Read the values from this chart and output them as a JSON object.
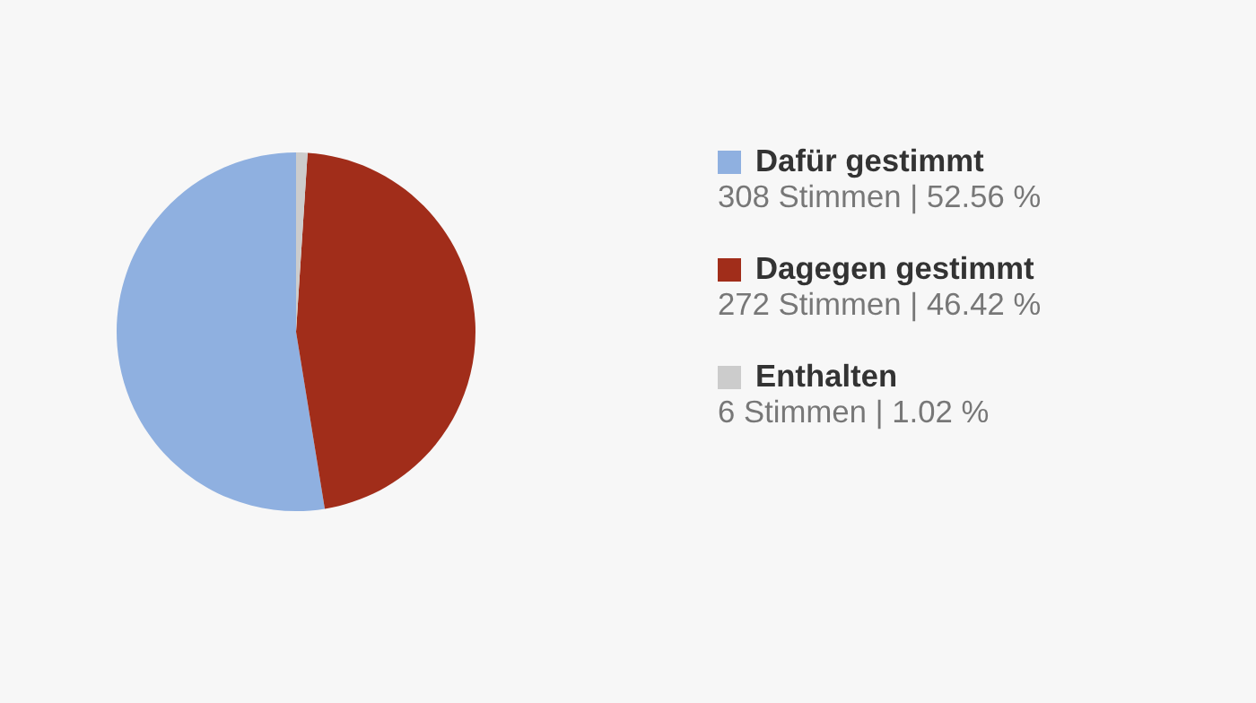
{
  "chart_data": {
    "type": "pie",
    "categories": [
      "Dafür gestimmt",
      "Dagegen gestimmt",
      "Enthalten"
    ],
    "values": [
      308,
      272,
      6
    ],
    "colors": [
      "#8fb0e0",
      "#a12d1a",
      "#cccccc"
    ],
    "value_labels": [
      "308 Stimmen | 52.56 %",
      "272 Stimmen | 46.42 %",
      "6 Stimmen | 1.02 %"
    ],
    "legend": "right"
  }
}
